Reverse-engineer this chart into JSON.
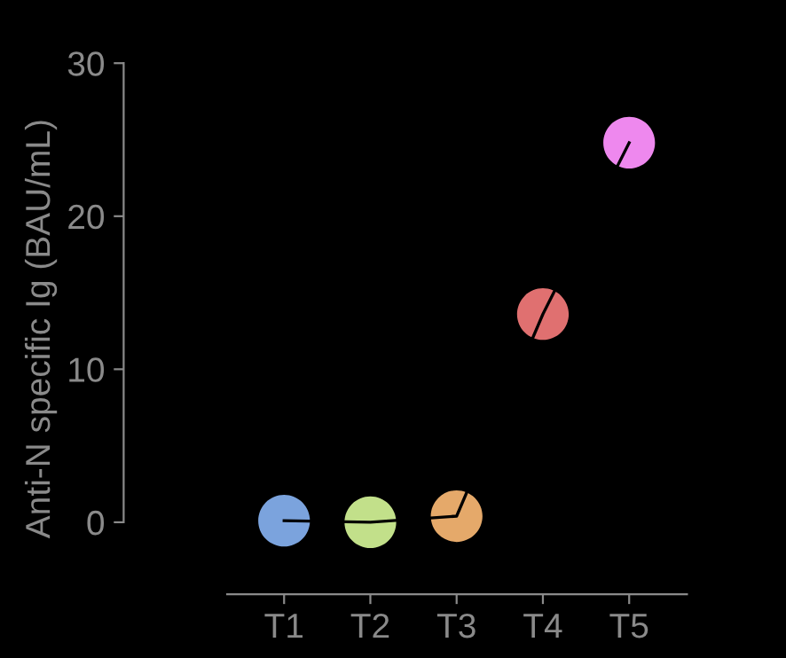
{
  "chart_data": {
    "type": "scatter",
    "ylabel": "Anti-N specific Ig (BAU/mL)",
    "categories": [
      "T1",
      "T2",
      "T3",
      "T4",
      "T5"
    ],
    "series": [
      {
        "colors": [
          "#7ba3dd",
          "#c2e08a",
          "#e5a96a",
          "#e07070",
          "#ee88ee"
        ],
        "values": [
          0.1,
          0.0,
          0.4,
          13.6,
          24.8
        ]
      },
      {
        "type": "line",
        "color": "#000000",
        "values": [
          0.1,
          0.0,
          0.4,
          13.6,
          24.8
        ]
      }
    ],
    "ylim": [
      -4.7,
      30
    ],
    "yticks": [
      0,
      10,
      20,
      30
    ]
  }
}
